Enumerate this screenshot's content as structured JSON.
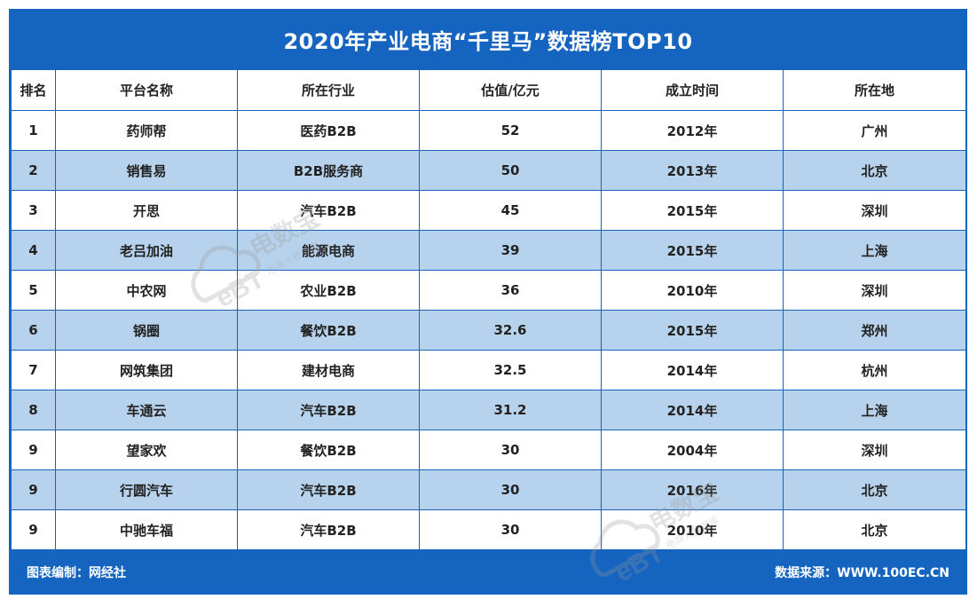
{
  "title": "2020年产业电商“千里马”数据榜TOP10",
  "table": {
    "headers": [
      "排名",
      "平台名称",
      "所在行业",
      "估值/亿元",
      "成立时间",
      "所在地"
    ],
    "rows": [
      {
        "rank": "1",
        "name": "药师帮",
        "industry": "医药B2B",
        "valuation": "52",
        "founded": "2012年",
        "location": "广州"
      },
      {
        "rank": "2",
        "name": "销售易",
        "industry": "B2B服务商",
        "valuation": "50",
        "founded": "2013年",
        "location": "北京"
      },
      {
        "rank": "3",
        "name": "开思",
        "industry": "汽车B2B",
        "valuation": "45",
        "founded": "2015年",
        "location": "深圳"
      },
      {
        "rank": "4",
        "name": "老吕加油",
        "industry": "能源电商",
        "valuation": "39",
        "founded": "2015年",
        "location": "上海"
      },
      {
        "rank": "5",
        "name": "中农网",
        "industry": "农业B2B",
        "valuation": "36",
        "founded": "2010年",
        "location": "深圳"
      },
      {
        "rank": "6",
        "name": "锅圈",
        "industry": "餐饮B2B",
        "valuation": "32.6",
        "founded": "2015年",
        "location": "郑州"
      },
      {
        "rank": "7",
        "name": "网筑集团",
        "industry": "建材电商",
        "valuation": "32.5",
        "founded": "2014年",
        "location": "杭州"
      },
      {
        "rank": "8",
        "name": "车通云",
        "industry": "汽车B2B",
        "valuation": "31.2",
        "founded": "2014年",
        "location": "上海"
      },
      {
        "rank": "9",
        "name": "望家欢",
        "industry": "餐饮B2B",
        "valuation": "30",
        "founded": "2004年",
        "location": "深圳"
      },
      {
        "rank": "9",
        "name": "行圆汽车",
        "industry": "汽车B2B",
        "valuation": "30",
        "founded": "2016年",
        "location": "北京"
      },
      {
        "rank": "9",
        "name": "中驰车福",
        "industry": "汽车B2B",
        "valuation": "30",
        "founded": "2010年",
        "location": "北京"
      }
    ]
  },
  "footer": {
    "left": "图表编制：网经社",
    "right": "数据来源：WWW.100EC.CN"
  },
  "watermark": {
    "logo_text": "eBT",
    "brand": "电数宝",
    "tagline": "电商大数据库"
  },
  "colors": {
    "brand_blue": "#1565c0",
    "stripe": "#b7d2ec",
    "watermark": "#9a9a9a"
  }
}
